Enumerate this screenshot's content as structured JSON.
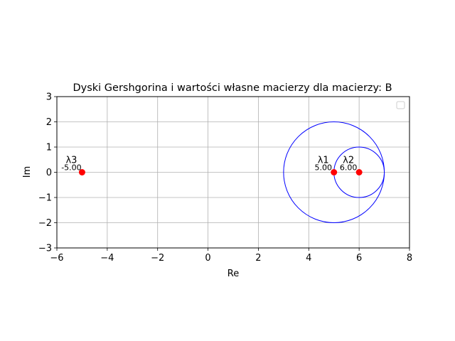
{
  "chart_data": {
    "type": "scatter",
    "title": "Dyski Gershgorina i wartości własne macierzy dla macierzy: B",
    "xlabel": "Re",
    "ylabel": "Im",
    "xlim": [
      -6,
      8
    ],
    "ylim": [
      -3,
      3
    ],
    "xticks": [
      -6,
      -4,
      -2,
      0,
      2,
      4,
      6,
      8
    ],
    "yticks": [
      -3,
      -2,
      -1,
      0,
      1,
      2,
      3
    ],
    "xtick_labels": [
      "−6",
      "−4",
      "−2",
      "0",
      "2",
      "4",
      "6",
      "8"
    ],
    "ytick_labels": [
      "−3",
      "−2",
      "−1",
      "0",
      "1",
      "2",
      "3"
    ],
    "grid": true,
    "legend": {
      "placement": "top-right",
      "entries": []
    },
    "discs": [
      {
        "center": [
          5,
          0
        ],
        "radius": 2,
        "color": "#0000ff"
      },
      {
        "center": [
          6,
          0
        ],
        "radius": 1,
        "color": "#0000ff"
      }
    ],
    "eigenvalues": [
      {
        "name": "λ1",
        "re": 5.0,
        "im": 0.0,
        "value_label": "5.00"
      },
      {
        "name": "λ2",
        "re": 6.0,
        "im": 0.0,
        "value_label": "6.00"
      },
      {
        "name": "λ3",
        "re": -5.0,
        "im": 0.0,
        "value_label": "-5.00"
      }
    ],
    "point_color": "#ff0000",
    "grid_color": "#b0b0b0"
  }
}
